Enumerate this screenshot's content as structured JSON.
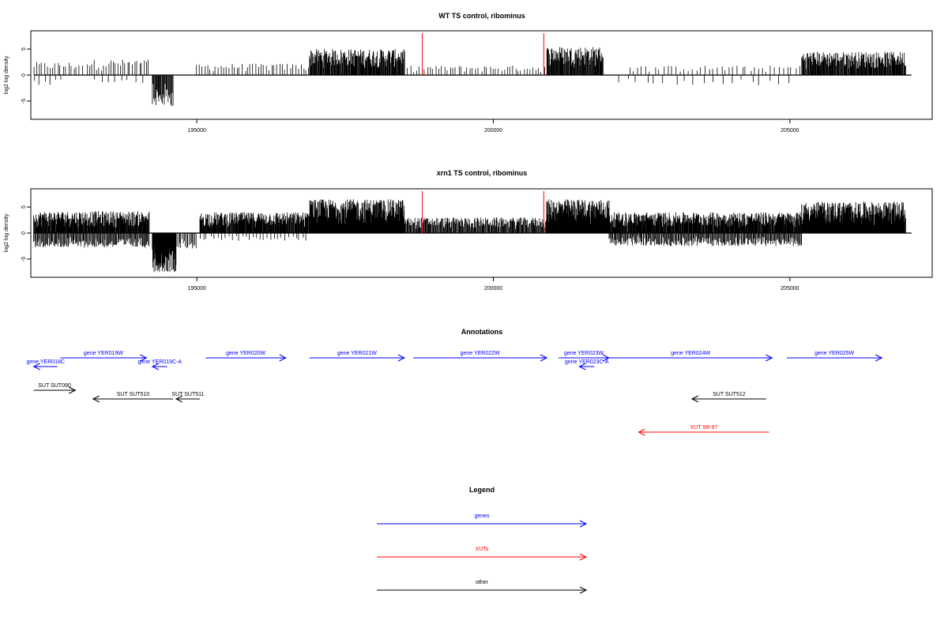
{
  "chart_data": [
    {
      "type": "bar",
      "title": "WT TS control, ribominus",
      "ylabel": "log2 log density",
      "xlabel": "",
      "xlim": [
        192200,
        207400
      ],
      "ylim": [
        -8.5,
        8.5
      ],
      "xticks": [
        195000,
        200000,
        205000
      ],
      "yticks": [
        5,
        0,
        -5
      ],
      "grid": false,
      "baseline": 0,
      "red_markers": [
        198800,
        200850
      ],
      "density_regions": [
        {
          "x": [
            192250,
            193100
          ],
          "amp": 2.5,
          "sign": "pos",
          "step": 45
        },
        {
          "x": [
            192250,
            192700
          ],
          "amp": 2.0,
          "sign": "neg",
          "step": 90
        },
        {
          "x": [
            193150,
            194200
          ],
          "amp": 3.0,
          "sign": "pos",
          "step": 40
        },
        {
          "x": [
            193300,
            194100
          ],
          "amp": 1.5,
          "sign": "neg",
          "step": 110
        },
        {
          "x": [
            194250,
            194600
          ],
          "amp": 6.0,
          "sign": "neg",
          "step": 12
        },
        {
          "x": [
            195000,
            196900
          ],
          "amp": 2.2,
          "sign": "pos",
          "step": 45
        },
        {
          "x": [
            196900,
            198500
          ],
          "amp": 5.0,
          "sign": "pos",
          "step": 10
        },
        {
          "x": [
            198500,
            200900
          ],
          "amp": 1.8,
          "sign": "pos",
          "step": 48
        },
        {
          "x": [
            200900,
            201850
          ],
          "amp": 5.5,
          "sign": "pos",
          "step": 10
        },
        {
          "x": [
            202300,
            205200
          ],
          "amp": 1.8,
          "sign": "pos",
          "step": 70
        },
        {
          "x": [
            202100,
            205000
          ],
          "amp": 2.0,
          "sign": "neg",
          "step": 160
        },
        {
          "x": [
            205200,
            206950
          ],
          "amp": 4.5,
          "sign": "pos",
          "step": 10
        }
      ]
    },
    {
      "type": "bar",
      "title": "xrn1 TS control, ribominus",
      "ylabel": "log2 log density",
      "xlabel": "",
      "xlim": [
        192200,
        207400
      ],
      "ylim": [
        -8.5,
        8.5
      ],
      "xticks": [
        195000,
        200000,
        205000
      ],
      "yticks": [
        5,
        0,
        -5
      ],
      "grid": false,
      "baseline": 0,
      "red_markers": [
        198800,
        200850
      ],
      "density_regions": [
        {
          "x": [
            192250,
            194200
          ],
          "amp": 4.2,
          "sign": "pos",
          "step": 9
        },
        {
          "x": [
            192250,
            194200
          ],
          "amp": 2.8,
          "sign": "neg",
          "step": 14
        },
        {
          "x": [
            194250,
            194650
          ],
          "amp": 7.5,
          "sign": "neg",
          "step": 7
        },
        {
          "x": [
            194650,
            195000
          ],
          "amp": 3.0,
          "sign": "neg",
          "step": 20
        },
        {
          "x": [
            195050,
            196900
          ],
          "amp": 4.0,
          "sign": "pos",
          "step": 9
        },
        {
          "x": [
            195050,
            196900
          ],
          "amp": 1.5,
          "sign": "neg",
          "step": 60
        },
        {
          "x": [
            196900,
            198500
          ],
          "amp": 6.5,
          "sign": "pos",
          "step": 7
        },
        {
          "x": [
            198500,
            200900
          ],
          "amp": 3.0,
          "sign": "pos",
          "step": 12
        },
        {
          "x": [
            200900,
            201950
          ],
          "amp": 6.5,
          "sign": "pos",
          "step": 7
        },
        {
          "x": [
            201950,
            205200
          ],
          "amp": 4.0,
          "sign": "pos",
          "step": 9
        },
        {
          "x": [
            201950,
            205200
          ],
          "amp": 2.5,
          "sign": "neg",
          "step": 14
        },
        {
          "x": [
            205200,
            206950
          ],
          "amp": 6.0,
          "sign": "pos",
          "step": 7
        }
      ]
    }
  ],
  "annotations": {
    "title": "Annotations",
    "features": [
      {
        "label": "gene YER018C",
        "start": 192650,
        "end": 192250,
        "strand": "-",
        "category": "genes",
        "row": 1
      },
      {
        "label": "gene YER019W",
        "start": 192700,
        "end": 194150,
        "strand": "+",
        "category": "genes",
        "row": 0
      },
      {
        "label": "gene YER019C-A",
        "start": 194500,
        "end": 194250,
        "strand": "-",
        "category": "genes",
        "row": 1
      },
      {
        "label": "gene YER020W",
        "start": 195150,
        "end": 196500,
        "strand": "+",
        "category": "genes",
        "row": 0
      },
      {
        "label": "gene YER021W",
        "start": 196900,
        "end": 198500,
        "strand": "+",
        "category": "genes",
        "row": 0
      },
      {
        "label": "gene YER022W",
        "start": 198650,
        "end": 200900,
        "strand": "+",
        "category": "genes",
        "row": 0
      },
      {
        "label": "gene YER023W",
        "start": 201100,
        "end": 201950,
        "strand": "+",
        "category": "genes",
        "row": 0
      },
      {
        "label": "gene YER023C-A",
        "start": 201700,
        "end": 201450,
        "strand": "-",
        "category": "genes",
        "row": 1
      },
      {
        "label": "gene YER024W",
        "start": 201950,
        "end": 204700,
        "strand": "+",
        "category": "genes",
        "row": 0
      },
      {
        "label": "gene YER025W",
        "start": 204950,
        "end": 206550,
        "strand": "+",
        "category": "genes",
        "row": 0
      },
      {
        "label": "SUT SUT090",
        "start": 192250,
        "end": 192950,
        "strand": "+",
        "category": "other",
        "row": 2
      },
      {
        "label": "SUT SUT510",
        "start": 194600,
        "end": 193250,
        "strand": "-",
        "category": "other",
        "row": 3
      },
      {
        "label": "SUT SUT511",
        "start": 195050,
        "end": 194650,
        "strand": "-",
        "category": "other",
        "row": 3
      },
      {
        "label": "SUT SUT512",
        "start": 204600,
        "end": 203350,
        "strand": "-",
        "category": "other",
        "row": 3
      },
      {
        "label": "XUT 5R-97",
        "start": 204650,
        "end": 202450,
        "strand": "-",
        "category": "XUTs",
        "row": 4
      }
    ]
  },
  "legend": {
    "title": "Legend",
    "items": [
      {
        "label": "genes",
        "color": "#0000ff"
      },
      {
        "label": "XUTs",
        "color": "#ff0000"
      },
      {
        "label": "other",
        "color": "#000000"
      }
    ]
  },
  "colors": {
    "genes": "#0000ff",
    "XUTs": "#ff0000",
    "other": "#000000",
    "marker": "#ff0000"
  }
}
